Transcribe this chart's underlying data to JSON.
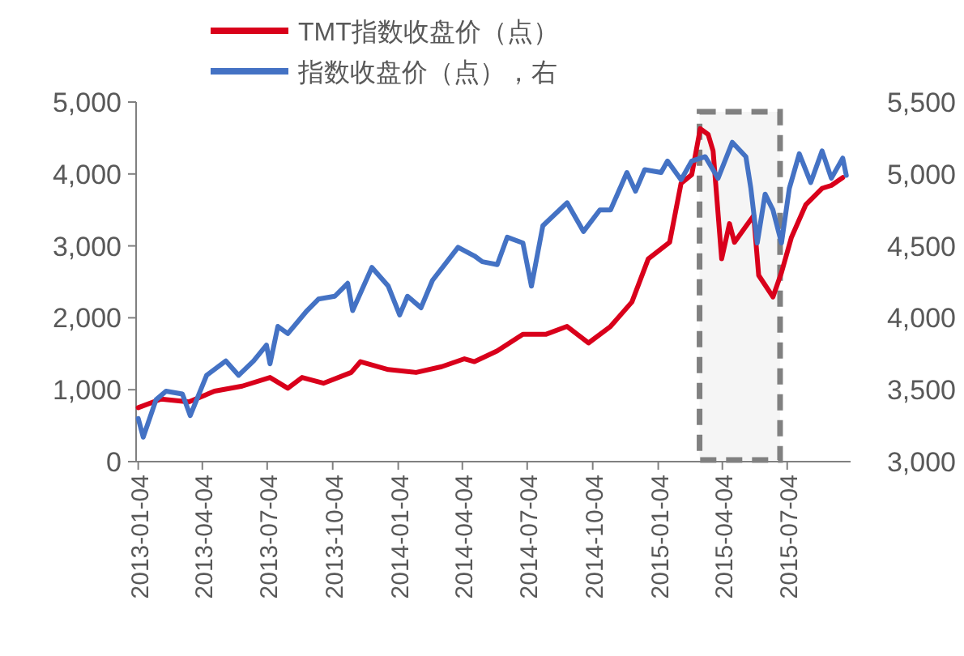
{
  "chart_data": {
    "type": "line",
    "legend": "top",
    "grid": false,
    "marker": "none",
    "line_style": "solid",
    "xlim": [
      "2013-01-01",
      "2015-10-01"
    ],
    "xticks": [
      "2013-01-04",
      "2013-04-04",
      "2013-07-04",
      "2013-10-04",
      "2014-01-04",
      "2014-04-04",
      "2014-07-04",
      "2014-10-04",
      "2015-01-04",
      "2015-04-04",
      "2015-07-04"
    ],
    "ylim": [
      0,
      5000
    ],
    "yticks": [
      {
        "value": 0,
        "label": "0"
      },
      {
        "value": 1000,
        "label": "1,000"
      },
      {
        "value": 2000,
        "label": "2,000"
      },
      {
        "value": 3000,
        "label": "3,000"
      },
      {
        "value": 4000,
        "label": "4,000"
      },
      {
        "value": 5000,
        "label": "5,000"
      }
    ],
    "y2lim": [
      3000,
      5500
    ],
    "y2ticks": [
      {
        "value": 3000,
        "label": "3,000"
      },
      {
        "value": 3500,
        "label": "3,500"
      },
      {
        "value": 4000,
        "label": "4,000"
      },
      {
        "value": 4500,
        "label": "4,500"
      },
      {
        "value": 5000,
        "label": "5,000"
      },
      {
        "value": 5500,
        "label": "5,500"
      }
    ],
    "bands": [
      {
        "axis": "x",
        "from": "2015-03-03",
        "to": "2015-06-24",
        "color": "#808080"
      }
    ],
    "series": [
      {
        "name": "TMT指数收盘价（点）",
        "color": "#d9001b",
        "x": [
          "2013-01-04",
          "2013-02-05",
          "2013-03-16",
          "2013-04-21",
          "2013-05-30",
          "2013-07-08",
          "2013-08-02",
          "2013-08-22",
          "2013-09-21",
          "2013-10-30",
          "2013-11-12",
          "2013-12-21",
          "2014-01-29",
          "2014-03-06",
          "2014-04-07",
          "2014-04-21",
          "2014-05-23",
          "2014-06-28",
          "2014-07-30",
          "2014-08-29",
          "2014-09-28",
          "2014-10-29",
          "2014-11-28",
          "2014-12-21",
          "2015-01-20",
          "2015-02-05",
          "2015-02-20",
          "2015-03-04",
          "2015-03-15",
          "2015-03-22",
          "2015-04-03",
          "2015-04-14",
          "2015-04-21",
          "2015-05-07",
          "2015-05-18",
          "2015-05-25",
          "2015-06-14",
          "2015-06-26",
          "2015-07-10",
          "2015-07-30",
          "2015-08-22",
          "2015-09-04",
          "2015-09-20"
        ],
        "values": [
          750,
          870,
          830,
          980,
          1050,
          1170,
          1020,
          1170,
          1090,
          1240,
          1390,
          1280,
          1240,
          1320,
          1430,
          1390,
          1540,
          1770,
          1770,
          1880,
          1650,
          1880,
          2220,
          2820,
          3050,
          3870,
          3990,
          4630,
          4550,
          4320,
          2820,
          3310,
          3050,
          3270,
          3420,
          2590,
          2290,
          2630,
          3120,
          3570,
          3800,
          3840,
          3950
        ]
      },
      {
        "name": "指数收盘价（点），右",
        "color": "#4472c4",
        "axis": "y2",
        "x": [
          "2013-01-04",
          "2013-01-11",
          "2013-01-29",
          "2013-02-12",
          "2013-03-07",
          "2013-03-18",
          "2013-04-10",
          "2013-05-07",
          "2013-05-25",
          "2013-06-15",
          "2013-07-03",
          "2013-07-08",
          "2013-07-19",
          "2013-08-02",
          "2013-08-29",
          "2013-09-14",
          "2013-10-07",
          "2013-10-25",
          "2013-11-01",
          "2013-11-28",
          "2013-12-21",
          "2014-01-06",
          "2014-01-17",
          "2014-02-05",
          "2014-02-21",
          "2014-03-29",
          "2014-04-21",
          "2014-05-02",
          "2014-05-23",
          "2014-06-06",
          "2014-06-28",
          "2014-07-10",
          "2014-07-26",
          "2014-08-29",
          "2014-09-21",
          "2014-10-14",
          "2014-10-29",
          "2014-11-21",
          "2014-12-03",
          "2014-12-16",
          "2015-01-08",
          "2015-01-17",
          "2015-02-05",
          "2015-02-20",
          "2015-03-11",
          "2015-03-29",
          "2015-04-18",
          "2015-05-07",
          "2015-05-14",
          "2015-05-23",
          "2015-06-03",
          "2015-06-14",
          "2015-06-26",
          "2015-07-07",
          "2015-07-21",
          "2015-08-06",
          "2015-08-22",
          "2015-09-04",
          "2015-09-20",
          "2015-09-25"
        ],
        "values": [
          3300,
          3170,
          3430,
          3490,
          3470,
          3320,
          3600,
          3700,
          3600,
          3700,
          3810,
          3680,
          3940,
          3890,
          4050,
          4130,
          4150,
          4240,
          4050,
          4350,
          4220,
          4020,
          4150,
          4070,
          4260,
          4490,
          4430,
          4390,
          4370,
          4560,
          4520,
          4220,
          4640,
          4800,
          4600,
          4750,
          4750,
          5010,
          4880,
          5030,
          5010,
          5090,
          4960,
          5090,
          5120,
          4970,
          5220,
          5120,
          4900,
          4520,
          4860,
          4750,
          4520,
          4900,
          5140,
          4940,
          5160,
          4970,
          5110,
          4990
        ]
      }
    ]
  }
}
